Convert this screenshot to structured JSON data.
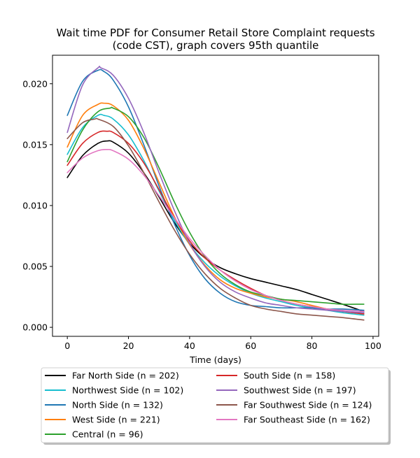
{
  "chart_data": {
    "type": "line",
    "title_line1": "Wait time PDF for Consumer Retail Store Complaint  requests",
    "title_line2": "(code CST), graph covers 95th quantile",
    "xlabel": "Time (days)",
    "ylabel": "",
    "xlim": [
      -4.85,
      101.85
    ],
    "ylim": [
      -0.00074,
      0.02234
    ],
    "xticks": [
      0,
      20,
      40,
      60,
      80,
      100
    ],
    "yticks": [
      0.0,
      0.005,
      0.01,
      0.015,
      0.02
    ],
    "xtick_labels": [
      "0",
      "20",
      "40",
      "60",
      "80",
      "100"
    ],
    "ytick_labels": [
      "0.000",
      "0.005",
      "0.010",
      "0.015",
      "0.020"
    ],
    "grid": false,
    "legend_position": "below plot, two columns",
    "series": [
      {
        "name": "Far North Side (n = 202)",
        "color": "#000000",
        "x": [
          0,
          5,
          10,
          13,
          15,
          20,
          25,
          30,
          35,
          40,
          45,
          50,
          55,
          60,
          65,
          70,
          75,
          80,
          85,
          90,
          97
        ],
        "y": [
          0.0123,
          0.0141,
          0.0151,
          0.0153,
          0.0152,
          0.0143,
          0.0127,
          0.0107,
          0.0086,
          0.0069,
          0.0057,
          0.0049,
          0.0044,
          0.004,
          0.0037,
          0.0034,
          0.0031,
          0.0027,
          0.0023,
          0.0019,
          0.0013
        ]
      },
      {
        "name": "Northwest Side (n = 102)",
        "color": "#17becf",
        "x": [
          0,
          5,
          10,
          12,
          15,
          20,
          25,
          30,
          35,
          40,
          45,
          50,
          55,
          60,
          65,
          70,
          75,
          80,
          85,
          90,
          97
        ],
        "y": [
          0.0142,
          0.0164,
          0.0174,
          0.0174,
          0.0171,
          0.0158,
          0.0137,
          0.0112,
          0.0088,
          0.0068,
          0.0053,
          0.0042,
          0.0034,
          0.0028,
          0.0024,
          0.0021,
          0.0018,
          0.0016,
          0.0014,
          0.0012,
          0.001
        ]
      },
      {
        "name": "North Side (n = 132)",
        "color": "#1f77b4",
        "x": [
          0,
          5,
          10,
          12,
          15,
          20,
          25,
          30,
          35,
          40,
          45,
          50,
          55,
          60,
          65,
          70,
          75,
          80,
          85,
          90,
          97
        ],
        "y": [
          0.0174,
          0.0202,
          0.0211,
          0.021,
          0.0203,
          0.0181,
          0.015,
          0.0116,
          0.0085,
          0.0059,
          0.004,
          0.0028,
          0.0021,
          0.0018,
          0.0017,
          0.0016,
          0.0016,
          0.0016,
          0.0015,
          0.0015,
          0.0014
        ]
      },
      {
        "name": "West Side (n = 221)",
        "color": "#ff7f0e",
        "x": [
          0,
          5,
          10,
          12,
          15,
          20,
          25,
          30,
          35,
          40,
          45,
          50,
          55,
          60,
          65,
          70,
          75,
          80,
          85,
          90,
          97
        ],
        "y": [
          0.0148,
          0.0174,
          0.0183,
          0.0184,
          0.0182,
          0.017,
          0.0147,
          0.0119,
          0.0091,
          0.0068,
          0.0051,
          0.0039,
          0.0032,
          0.0028,
          0.0025,
          0.0023,
          0.0021,
          0.0018,
          0.0015,
          0.0013,
          0.0011
        ]
      },
      {
        "name": "Central (n = 96)",
        "color": "#2ca02c",
        "x": [
          0,
          5,
          10,
          14,
          15,
          20,
          25,
          30,
          35,
          40,
          45,
          50,
          55,
          60,
          65,
          70,
          75,
          80,
          85,
          90,
          97
        ],
        "y": [
          0.0136,
          0.0162,
          0.0177,
          0.018,
          0.018,
          0.0173,
          0.0156,
          0.0131,
          0.0103,
          0.0078,
          0.0058,
          0.0044,
          0.0035,
          0.0029,
          0.0026,
          0.0023,
          0.0022,
          0.0021,
          0.002,
          0.0019,
          0.0019
        ]
      },
      {
        "name": "South Side (n = 158)",
        "color": "#d62728",
        "x": [
          0,
          5,
          10,
          13,
          15,
          20,
          25,
          30,
          35,
          40,
          45,
          50,
          55,
          60,
          65,
          70,
          75,
          80,
          85,
          90,
          97
        ],
        "y": [
          0.0133,
          0.0151,
          0.016,
          0.0161,
          0.016,
          0.0151,
          0.0135,
          0.0113,
          0.009,
          0.0071,
          0.0057,
          0.0047,
          0.0039,
          0.0032,
          0.0026,
          0.0022,
          0.0019,
          0.0017,
          0.0015,
          0.0013,
          0.0011
        ]
      },
      {
        "name": "Southwest Side (n = 197)",
        "color": "#9467bd",
        "x": [
          0,
          5,
          10,
          11,
          15,
          20,
          25,
          30,
          35,
          40,
          45,
          50,
          55,
          60,
          65,
          70,
          75,
          80,
          85,
          90,
          97
        ],
        "y": [
          0.016,
          0.0199,
          0.0213,
          0.0213,
          0.0207,
          0.0188,
          0.016,
          0.0127,
          0.0096,
          0.0069,
          0.005,
          0.0037,
          0.0029,
          0.0024,
          0.002,
          0.0018,
          0.0016,
          0.0015,
          0.0014,
          0.0013,
          0.0012
        ]
      },
      {
        "name": "Far Southwest Side (n = 124)",
        "color": "#8c564b",
        "x": [
          0,
          5,
          9,
          10,
          15,
          20,
          25,
          30,
          35,
          40,
          45,
          50,
          55,
          60,
          65,
          70,
          75,
          80,
          85,
          90,
          97
        ],
        "y": [
          0.0155,
          0.0168,
          0.0171,
          0.0171,
          0.0165,
          0.0149,
          0.0127,
          0.0103,
          0.008,
          0.006,
          0.0044,
          0.0032,
          0.0024,
          0.0018,
          0.0015,
          0.0013,
          0.0011,
          0.001,
          0.0009,
          0.0008,
          0.0006
        ]
      },
      {
        "name": "Far Southeast Side (n = 162)",
        "color": "#e377c2",
        "x": [
          0,
          5,
          10,
          13,
          15,
          20,
          25,
          30,
          35,
          40,
          45,
          50,
          55,
          60,
          65,
          70,
          75,
          80,
          85,
          90,
          97
        ],
        "y": [
          0.0127,
          0.0139,
          0.0145,
          0.0146,
          0.0145,
          0.0138,
          0.0125,
          0.0108,
          0.009,
          0.0073,
          0.0059,
          0.0047,
          0.0038,
          0.0031,
          0.0026,
          0.0022,
          0.0019,
          0.0017,
          0.0015,
          0.0014,
          0.0013
        ]
      }
    ]
  }
}
